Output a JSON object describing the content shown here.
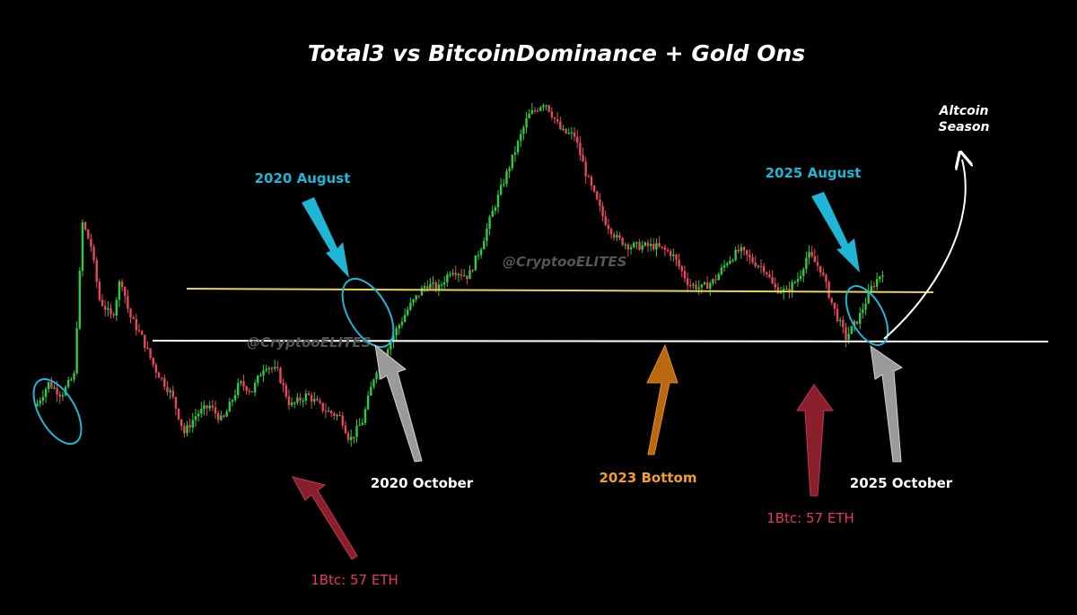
{
  "chart_data": {
    "type": "candlestick",
    "title": "Total3 vs BitcoinDominance + Gold Ons",
    "watermark": "@CryptooELITES",
    "x_range": [
      0,
      100
    ],
    "y_range": [
      0,
      100
    ],
    "colors": {
      "up": "#2ecc40",
      "down": "#e8485a",
      "background": "#000000",
      "resistance_line": "#e8d44d",
      "support_line": "#ffffff",
      "cyan": "#1fb6d6",
      "grey_arrow": "#9a9a9a",
      "red_arrow": "#8b1e2c",
      "orange_arrow": "#b8680f",
      "label_red": "#e23a5e",
      "label_orange": "#f0a02a"
    },
    "price_path": [
      [
        0,
        24
      ],
      [
        1.5,
        30
      ],
      [
        3,
        27
      ],
      [
        4.5,
        32
      ],
      [
        5.5,
        72
      ],
      [
        6.5,
        66
      ],
      [
        7.5,
        52
      ],
      [
        9,
        47
      ],
      [
        10,
        58
      ],
      [
        11,
        48
      ],
      [
        12.5,
        42
      ],
      [
        14,
        34
      ],
      [
        16,
        27
      ],
      [
        17.5,
        17
      ],
      [
        19,
        22
      ],
      [
        20.5,
        24
      ],
      [
        22,
        20
      ],
      [
        24,
        30
      ],
      [
        25.5,
        28
      ],
      [
        27,
        35
      ],
      [
        28.5,
        33
      ],
      [
        30,
        24
      ],
      [
        32,
        27
      ],
      [
        34,
        23
      ],
      [
        36,
        21
      ],
      [
        37,
        15
      ],
      [
        38.5,
        20
      ],
      [
        40,
        33
      ],
      [
        42,
        42
      ],
      [
        44,
        50
      ],
      [
        46,
        56
      ],
      [
        47.5,
        55
      ],
      [
        49,
        60
      ],
      [
        51,
        58
      ],
      [
        52.5,
        66
      ],
      [
        54,
        76
      ],
      [
        56,
        88
      ],
      [
        58,
        100
      ],
      [
        60,
        104
      ],
      [
        62,
        96
      ],
      [
        63.5,
        95
      ],
      [
        65,
        84
      ],
      [
        67,
        73
      ],
      [
        68.5,
        68
      ],
      [
        70,
        66
      ],
      [
        71.5,
        66
      ],
      [
        73,
        66
      ],
      [
        75,
        64
      ],
      [
        77,
        56
      ],
      [
        78.5,
        55
      ],
      [
        80,
        57
      ],
      [
        81.5,
        62
      ],
      [
        83,
        65
      ],
      [
        84.5,
        62
      ],
      [
        86,
        60
      ],
      [
        87,
        55
      ],
      [
        88.5,
        54
      ],
      [
        90,
        58
      ],
      [
        91,
        64
      ],
      [
        92.5,
        60
      ],
      [
        94,
        50
      ],
      [
        95.5,
        42
      ],
      [
        97,
        47
      ],
      [
        98.5,
        55
      ],
      [
        100,
        60
      ]
    ],
    "annotations": [
      {
        "text": "2020 August"
      },
      {
        "text": "2020 October"
      },
      {
        "text": "1Btc: 57 ETH"
      },
      {
        "text": "2023 Bottom"
      },
      {
        "text": "2025 August"
      },
      {
        "text": "2025 October"
      },
      {
        "text": "1Btc: 57 ETH"
      },
      {
        "text": "Altcoin"
      },
      {
        "text": "Season"
      }
    ]
  }
}
